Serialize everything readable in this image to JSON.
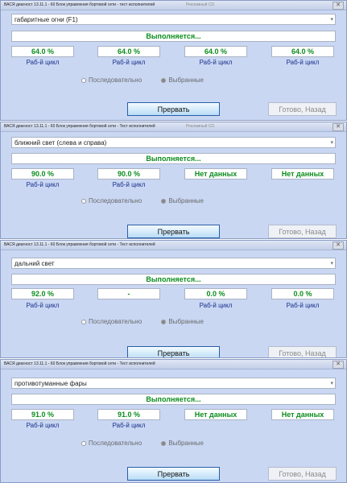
{
  "windows": [
    {
      "title": "ВАСЯ диагност 13.11.1 - 60 Блок управления бортовой сети - тест исполнителей",
      "title_extra": "Рекламный CD.",
      "function": "габаритные огни (F1)",
      "status": "Выполняется...",
      "values": [
        "64.0 %",
        "64.0 %",
        "64.0 %",
        "64.0 %"
      ],
      "captions": [
        "Раб-й цикл",
        "Раб-й цикл",
        "Раб-й цикл",
        "Раб-й цикл"
      ],
      "radio_sequential": "Последовательно",
      "radio_selected": "Выбранные",
      "btn_stop": "Прервать",
      "btn_done": "Готово, Назад"
    },
    {
      "title": "ВАСЯ диагност 13.11.1 - 60 Блок управления бортовой сети - Тест исполнителей",
      "title_extra": "Рекламный CD.",
      "function": "ближний свет (слева и справа)",
      "status": "Выполняется...",
      "values": [
        "90.0 %",
        "90.0 %",
        "Нет данных",
        "Нет данных"
      ],
      "captions": [
        "Раб-й цикл",
        "Раб-й цикл",
        "",
        ""
      ],
      "radio_sequential": "Последовательно",
      "radio_selected": "Выбранные",
      "btn_stop": "Прервать",
      "btn_done": "Готово, Назад"
    },
    {
      "title": "ВАСЯ диагност 13.11.1 - 60 Блок управления бортовой сети - Тест исполнителей",
      "title_extra": "",
      "function": "дальний свет",
      "status": "Выполняется...",
      "values": [
        "92.0 %",
        "-",
        "0.0 %",
        "0.0 %"
      ],
      "captions": [
        "Раб-й цикл",
        "",
        "Раб-й цикл",
        "Раб-й цикл"
      ],
      "radio_sequential": "Последовательно",
      "radio_selected": "Выбранные",
      "btn_stop": "Прервать",
      "btn_done": "Готово, Назад"
    },
    {
      "title": "ВАСЯ диагност 13.11.1 - 60 Блок управления бортовой сети - Тест исполнителей",
      "title_extra": "",
      "function": "противотуманные фары",
      "status": "Выполняется...",
      "values": [
        "91.0 %",
        "91.0 %",
        "Нет данных",
        "Нет данных"
      ],
      "captions": [
        "Раб-й цикл",
        "Раб-й цикл",
        "",
        ""
      ],
      "radio_sequential": "Последовательно",
      "radio_selected": "Выбранные",
      "btn_stop": "Прервать",
      "btn_done": "Готово, Назад"
    }
  ]
}
